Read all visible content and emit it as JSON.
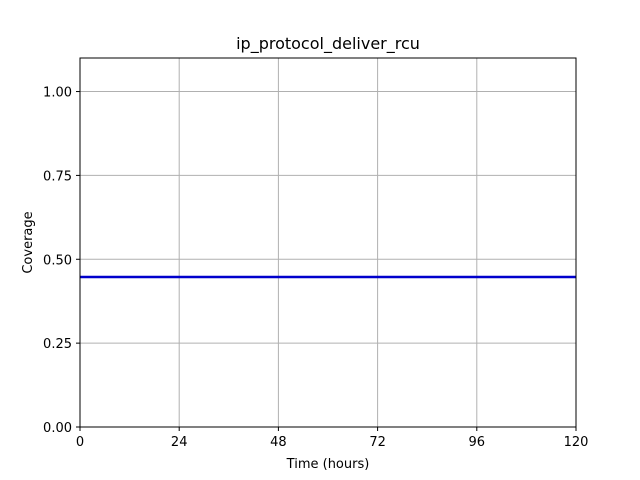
{
  "chart_data": {
    "type": "line",
    "title": "ip_protocol_deliver_rcu",
    "xlabel": "Time (hours)",
    "ylabel": "Coverage",
    "xlim": [
      0,
      120
    ],
    "ylim": [
      0,
      1.1
    ],
    "xticks": [
      0,
      24,
      48,
      72,
      96,
      120
    ],
    "xtick_labels": [
      "0",
      "24",
      "48",
      "72",
      "96",
      "120"
    ],
    "yticks": [
      0,
      0.25,
      0.5,
      0.75,
      1.0
    ],
    "ytick_labels": [
      "0.00",
      "0.25",
      "0.50",
      "0.75",
      "1.00"
    ],
    "grid": true,
    "series": [
      {
        "color": "#0000cc",
        "x": [
          0,
          120
        ],
        "y": [
          0.447,
          0.447
        ]
      }
    ]
  }
}
